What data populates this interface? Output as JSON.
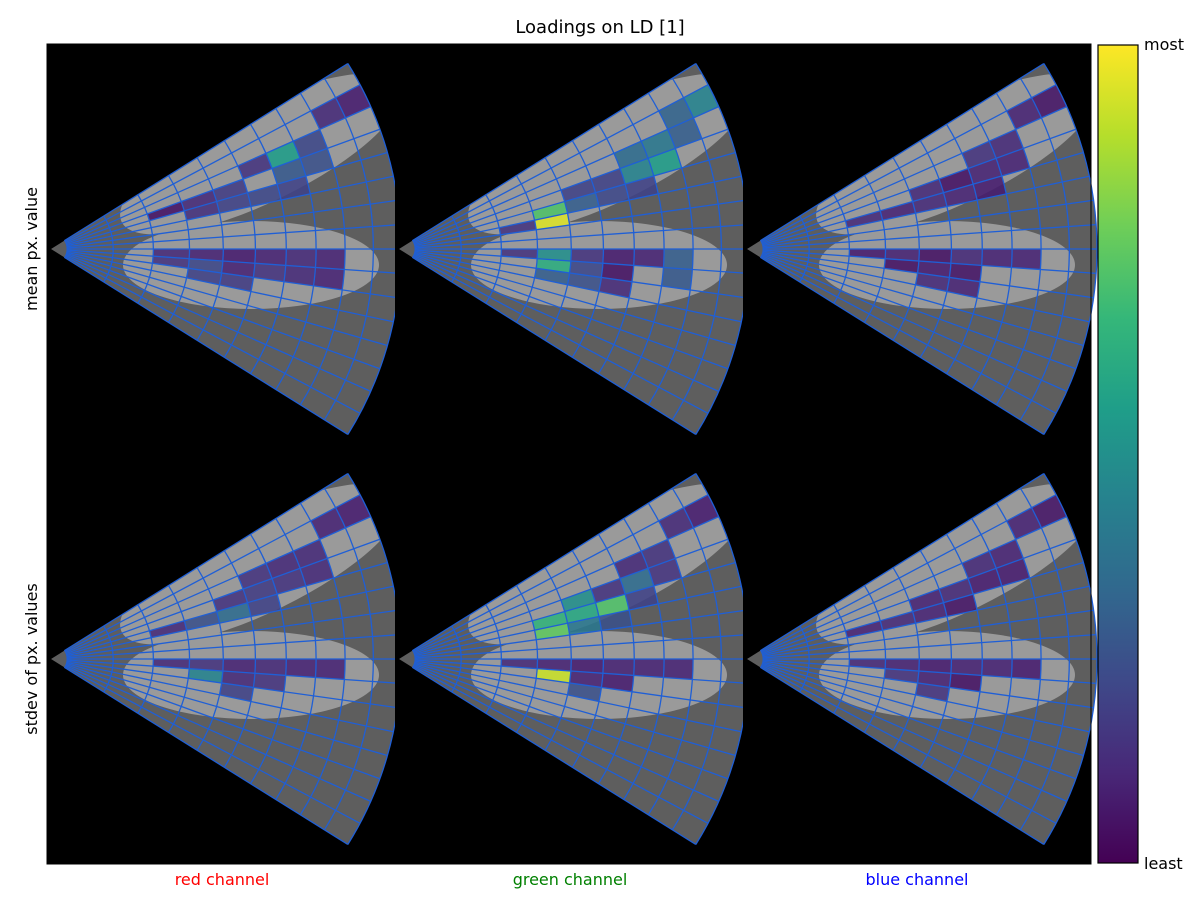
{
  "chart_data": {
    "type": "heatmap",
    "title": "Loadings on LD [1]",
    "rows": [
      "mean px. value",
      "stdev of px. values"
    ],
    "columns": [
      "red channel",
      "green channel",
      "blue channel"
    ],
    "column_label_colors": [
      "#ff0000",
      "#008000",
      "#0000ff"
    ],
    "colorbar": {
      "colormap": "viridis",
      "stops": [
        "#440154",
        "#482878",
        "#3e4989",
        "#31688e",
        "#26828e",
        "#1f9e89",
        "#35b779",
        "#6ece58",
        "#b5de2b",
        "#fde725"
      ],
      "top_label": "most",
      "bottom_label": "least",
      "range": [
        0,
        1
      ]
    },
    "grid": {
      "radial_bins": 10,
      "angular_bins": 16,
      "angle_span_deg": 64,
      "line_color": "#1f5fd6"
    },
    "panels": [
      {
        "row": 0,
        "col": 0,
        "cells": [
          {
            "r": 2,
            "a": 12,
            "v": 0.05
          },
          {
            "r": 3,
            "a": 12,
            "v": 0.12
          },
          {
            "r": 4,
            "a": 12,
            "v": 0.18
          },
          {
            "r": 5,
            "a": 13,
            "v": 0.15
          },
          {
            "r": 6,
            "a": 13,
            "v": 0.55
          },
          {
            "r": 6,
            "a": 12,
            "v": 0.28
          },
          {
            "r": 7,
            "a": 13,
            "v": 0.22
          },
          {
            "r": 7,
            "a": 12,
            "v": 0.25
          },
          {
            "r": 8,
            "a": 14,
            "v": 0.12
          },
          {
            "r": 9,
            "a": 14,
            "v": 0.08
          },
          {
            "r": 3,
            "a": 11,
            "v": 0.14
          },
          {
            "r": 4,
            "a": 11,
            "v": 0.2
          },
          {
            "r": 5,
            "a": 11,
            "v": 0.22
          },
          {
            "r": 6,
            "a": 11,
            "v": 0.2
          },
          {
            "r": 2,
            "a": 7,
            "v": 0.12
          },
          {
            "r": 3,
            "a": 7,
            "v": 0.1
          },
          {
            "r": 4,
            "a": 7,
            "v": 0.08
          },
          {
            "r": 5,
            "a": 7,
            "v": 0.1
          },
          {
            "r": 6,
            "a": 7,
            "v": 0.12
          },
          {
            "r": 7,
            "a": 7,
            "v": 0.1
          },
          {
            "r": 2,
            "a": 6,
            "v": 0.15
          },
          {
            "r": 3,
            "a": 6,
            "v": 0.22
          },
          {
            "r": 4,
            "a": 6,
            "v": 0.1
          },
          {
            "r": 5,
            "a": 6,
            "v": 0.15
          },
          {
            "r": 6,
            "a": 6,
            "v": 0.12
          },
          {
            "r": 7,
            "a": 6,
            "v": 0.1
          },
          {
            "r": 3,
            "a": 5,
            "v": 0.2
          },
          {
            "r": 4,
            "a": 5,
            "v": 0.18
          }
        ]
      },
      {
        "row": 0,
        "col": 1,
        "cells": [
          {
            "r": 2,
            "a": 10,
            "v": 0.15
          },
          {
            "r": 3,
            "a": 10,
            "v": 0.95
          },
          {
            "r": 3,
            "a": 11,
            "v": 0.72
          },
          {
            "r": 4,
            "a": 11,
            "v": 0.3
          },
          {
            "r": 5,
            "a": 11,
            "v": 0.22
          },
          {
            "r": 5,
            "a": 12,
            "v": 0.2
          },
          {
            "r": 6,
            "a": 12,
            "v": 0.45
          },
          {
            "r": 7,
            "a": 12,
            "v": 0.55
          },
          {
            "r": 7,
            "a": 13,
            "v": 0.4
          },
          {
            "r": 8,
            "a": 13,
            "v": 0.3
          },
          {
            "r": 8,
            "a": 14,
            "v": 0.32
          },
          {
            "r": 9,
            "a": 14,
            "v": 0.45
          },
          {
            "r": 6,
            "a": 13,
            "v": 0.35
          },
          {
            "r": 4,
            "a": 12,
            "v": 0.2
          },
          {
            "r": 6,
            "a": 11,
            "v": 0.2
          },
          {
            "r": 2,
            "a": 7,
            "v": 0.15
          },
          {
            "r": 3,
            "a": 7,
            "v": 0.5
          },
          {
            "r": 3,
            "a": 6,
            "v": 0.62
          },
          {
            "r": 4,
            "a": 7,
            "v": 0.15
          },
          {
            "r": 5,
            "a": 7,
            "v": 0.08
          },
          {
            "r": 6,
            "a": 7,
            "v": 0.1
          },
          {
            "r": 7,
            "a": 7,
            "v": 0.3
          },
          {
            "r": 4,
            "a": 6,
            "v": 0.22
          },
          {
            "r": 5,
            "a": 6,
            "v": 0.05
          },
          {
            "r": 7,
            "a": 6,
            "v": 0.28
          },
          {
            "r": 4,
            "a": 5,
            "v": 0.25
          },
          {
            "r": 5,
            "a": 5,
            "v": 0.12
          },
          {
            "r": 3,
            "a": 5,
            "v": 0.3
          }
        ]
      },
      {
        "row": 0,
        "col": 2,
        "cells": [
          {
            "r": 2,
            "a": 11,
            "v": 0.12
          },
          {
            "r": 3,
            "a": 11,
            "v": 0.1
          },
          {
            "r": 4,
            "a": 12,
            "v": 0.12
          },
          {
            "r": 5,
            "a": 12,
            "v": 0.05
          },
          {
            "r": 6,
            "a": 12,
            "v": 0.1
          },
          {
            "r": 6,
            "a": 13,
            "v": 0.15
          },
          {
            "r": 7,
            "a": 13,
            "v": 0.12
          },
          {
            "r": 8,
            "a": 14,
            "v": 0.1
          },
          {
            "r": 9,
            "a": 14,
            "v": 0.06
          },
          {
            "r": 5,
            "a": 11,
            "v": 0.1
          },
          {
            "r": 4,
            "a": 11,
            "v": 0.12
          },
          {
            "r": 6,
            "a": 11,
            "v": 0.08
          },
          {
            "r": 7,
            "a": 12,
            "v": 0.1
          },
          {
            "r": 2,
            "a": 7,
            "v": 0.08
          },
          {
            "r": 3,
            "a": 7,
            "v": 0.1
          },
          {
            "r": 4,
            "a": 7,
            "v": 0.05
          },
          {
            "r": 5,
            "a": 7,
            "v": 0.12
          },
          {
            "r": 6,
            "a": 7,
            "v": 0.1
          },
          {
            "r": 7,
            "a": 7,
            "v": 0.1
          },
          {
            "r": 3,
            "a": 6,
            "v": 0.05
          },
          {
            "r": 4,
            "a": 6,
            "v": 0.08
          },
          {
            "r": 5,
            "a": 6,
            "v": 0.06
          },
          {
            "r": 4,
            "a": 5,
            "v": 0.12
          },
          {
            "r": 5,
            "a": 5,
            "v": 0.1
          }
        ]
      },
      {
        "row": 1,
        "col": 0,
        "cells": [
          {
            "r": 2,
            "a": 11,
            "v": 0.12
          },
          {
            "r": 3,
            "a": 11,
            "v": 0.25
          },
          {
            "r": 4,
            "a": 11,
            "v": 0.35
          },
          {
            "r": 4,
            "a": 12,
            "v": 0.15
          },
          {
            "r": 5,
            "a": 12,
            "v": 0.18
          },
          {
            "r": 6,
            "a": 12,
            "v": 0.15
          },
          {
            "r": 6,
            "a": 13,
            "v": 0.12
          },
          {
            "r": 7,
            "a": 13,
            "v": 0.12
          },
          {
            "r": 8,
            "a": 14,
            "v": 0.1
          },
          {
            "r": 9,
            "a": 14,
            "v": 0.08
          },
          {
            "r": 5,
            "a": 11,
            "v": 0.2
          },
          {
            "r": 7,
            "a": 12,
            "v": 0.12
          },
          {
            "r": 5,
            "a": 13,
            "v": 0.15
          },
          {
            "r": 2,
            "a": 7,
            "v": 0.12
          },
          {
            "r": 3,
            "a": 7,
            "v": 0.15
          },
          {
            "r": 4,
            "a": 7,
            "v": 0.1
          },
          {
            "r": 5,
            "a": 7,
            "v": 0.12
          },
          {
            "r": 6,
            "a": 7,
            "v": 0.1
          },
          {
            "r": 7,
            "a": 7,
            "v": 0.1
          },
          {
            "r": 3,
            "a": 6,
            "v": 0.45
          },
          {
            "r": 4,
            "a": 6,
            "v": 0.12
          },
          {
            "r": 5,
            "a": 6,
            "v": 0.15
          },
          {
            "r": 4,
            "a": 5,
            "v": 0.2
          }
        ]
      },
      {
        "row": 1,
        "col": 1,
        "cells": [
          {
            "r": 3,
            "a": 10,
            "v": 0.75
          },
          {
            "r": 3,
            "a": 11,
            "v": 0.65
          },
          {
            "r": 4,
            "a": 11,
            "v": 0.6
          },
          {
            "r": 4,
            "a": 12,
            "v": 0.5
          },
          {
            "r": 5,
            "a": 11,
            "v": 0.72
          },
          {
            "r": 4,
            "a": 10,
            "v": 0.4
          },
          {
            "r": 5,
            "a": 12,
            "v": 0.15
          },
          {
            "r": 6,
            "a": 12,
            "v": 0.35
          },
          {
            "r": 6,
            "a": 13,
            "v": 0.12
          },
          {
            "r": 7,
            "a": 13,
            "v": 0.15
          },
          {
            "r": 8,
            "a": 14,
            "v": 0.12
          },
          {
            "r": 9,
            "a": 14,
            "v": 0.08
          },
          {
            "r": 5,
            "a": 10,
            "v": 0.25
          },
          {
            "r": 6,
            "a": 11,
            "v": 0.2
          },
          {
            "r": 7,
            "a": 12,
            "v": 0.15
          },
          {
            "r": 2,
            "a": 7,
            "v": 0.12
          },
          {
            "r": 3,
            "a": 7,
            "v": 0.1
          },
          {
            "r": 4,
            "a": 7,
            "v": 0.08
          },
          {
            "r": 5,
            "a": 7,
            "v": 0.1
          },
          {
            "r": 6,
            "a": 7,
            "v": 0.1
          },
          {
            "r": 7,
            "a": 7,
            "v": 0.1
          },
          {
            "r": 3,
            "a": 6,
            "v": 0.92
          },
          {
            "r": 4,
            "a": 6,
            "v": 0.1
          },
          {
            "r": 5,
            "a": 6,
            "v": 0.08
          },
          {
            "r": 4,
            "a": 5,
            "v": 0.25
          }
        ]
      },
      {
        "row": 1,
        "col": 2,
        "cells": [
          {
            "r": 2,
            "a": 11,
            "v": 0.1
          },
          {
            "r": 3,
            "a": 11,
            "v": 0.12
          },
          {
            "r": 4,
            "a": 12,
            "v": 0.1
          },
          {
            "r": 5,
            "a": 12,
            "v": 0.12
          },
          {
            "r": 6,
            "a": 12,
            "v": 0.08
          },
          {
            "r": 6,
            "a": 13,
            "v": 0.12
          },
          {
            "r": 7,
            "a": 13,
            "v": 0.1
          },
          {
            "r": 8,
            "a": 14,
            "v": 0.1
          },
          {
            "r": 9,
            "a": 14,
            "v": 0.06
          },
          {
            "r": 5,
            "a": 11,
            "v": 0.06
          },
          {
            "r": 4,
            "a": 11,
            "v": 0.1
          },
          {
            "r": 7,
            "a": 12,
            "v": 0.08
          },
          {
            "r": 2,
            "a": 7,
            "v": 0.12
          },
          {
            "r": 3,
            "a": 7,
            "v": 0.1
          },
          {
            "r": 4,
            "a": 7,
            "v": 0.08
          },
          {
            "r": 5,
            "a": 7,
            "v": 0.1
          },
          {
            "r": 6,
            "a": 7,
            "v": 0.1
          },
          {
            "r": 7,
            "a": 7,
            "v": 0.08
          },
          {
            "r": 3,
            "a": 6,
            "v": 0.15
          },
          {
            "r": 4,
            "a": 6,
            "v": 0.1
          },
          {
            "r": 5,
            "a": 6,
            "v": 0.05
          },
          {
            "r": 4,
            "a": 5,
            "v": 0.15
          }
        ]
      }
    ]
  }
}
